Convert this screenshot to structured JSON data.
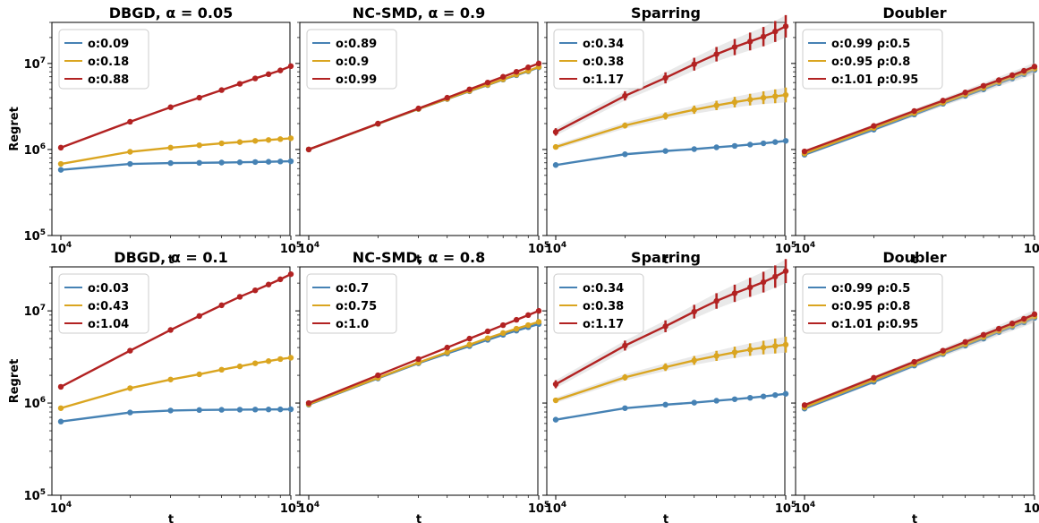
{
  "chart_data": [
    {
      "type": "line",
      "title": "DBGD, α = 0.05",
      "xlabel": "t",
      "ylabel": "Regret",
      "xscale": "log",
      "yscale": "log",
      "xlim": [
        10000,
        100000
      ],
      "ylim": [
        100000,
        30000000
      ],
      "xticklabels": [
        "10^4",
        "10^5"
      ],
      "yticklabels": [
        "10^5",
        "10^6",
        "10^7"
      ],
      "legend": "top-left",
      "x": [
        10000,
        20000,
        30000,
        40000,
        50000,
        60000,
        70000,
        80000,
        90000,
        100000
      ],
      "series": [
        {
          "name": "o:0.09",
          "color": "#4682b4",
          "values": [
            580000,
            680000,
            695000,
            700000,
            705000,
            710000,
            715000,
            720000,
            725000,
            730000
          ]
        },
        {
          "name": "o:0.18",
          "color": "#daa520",
          "values": [
            680000,
            940000,
            1050000,
            1120000,
            1180000,
            1220000,
            1260000,
            1290000,
            1320000,
            1350000
          ]
        },
        {
          "name": "o:0.88",
          "color": "#b22222",
          "values": [
            1050000,
            2100000,
            3100000,
            4000000,
            4900000,
            5800000,
            6700000,
            7500000,
            8300000,
            9300000
          ]
        }
      ]
    },
    {
      "type": "line",
      "title": "NC-SMD, α = 0.9",
      "xlabel": "t",
      "xscale": "log",
      "yscale": "log",
      "xlim": [
        10000,
        100000
      ],
      "ylim": [
        100000,
        30000000
      ],
      "xticklabels": [
        "10^4",
        "10^5"
      ],
      "legend": "top-left",
      "x": [
        10000,
        20000,
        30000,
        40000,
        50000,
        60000,
        70000,
        80000,
        90000,
        100000
      ],
      "series": [
        {
          "name": "o:0.89",
          "color": "#4682b4",
          "values": [
            1000000,
            1980000,
            2950000,
            3850000,
            4750000,
            5600000,
            6500000,
            7300000,
            8100000,
            9000000
          ]
        },
        {
          "name": "o:0.9",
          "color": "#daa520",
          "values": [
            1000000,
            1990000,
            2960000,
            3880000,
            4800000,
            5650000,
            6550000,
            7400000,
            8200000,
            9100000
          ]
        },
        {
          "name": "o:0.99",
          "color": "#b22222",
          "values": [
            1000000,
            2000000,
            3000000,
            4000000,
            5000000,
            6000000,
            7000000,
            8000000,
            9000000,
            10000000
          ]
        }
      ]
    },
    {
      "type": "line",
      "title": "Sparring",
      "xlabel": "t",
      "xscale": "log",
      "yscale": "log",
      "xlim": [
        10000,
        100000
      ],
      "ylim": [
        100000,
        30000000
      ],
      "xticklabels": [
        "10^4",
        "10^5"
      ],
      "legend": "top-left",
      "x": [
        10000,
        20000,
        30000,
        40000,
        50000,
        60000,
        70000,
        80000,
        90000,
        100000
      ],
      "series": [
        {
          "name": "o:0.34",
          "color": "#4682b4",
          "values": [
            660000,
            880000,
            960000,
            1010000,
            1060000,
            1100000,
            1140000,
            1180000,
            1220000,
            1260000
          ]
        },
        {
          "name": "o:0.38",
          "color": "#daa520",
          "values": [
            1070000,
            1900000,
            2450000,
            2900000,
            3250000,
            3550000,
            3800000,
            4000000,
            4150000,
            4300000
          ]
        },
        {
          "name": "o:1.17",
          "color": "#b22222",
          "values": [
            1600000,
            4200000,
            6800000,
            9800000,
            12800000,
            15500000,
            18000000,
            20500000,
            23500000,
            27000000
          ]
        }
      ]
    },
    {
      "type": "line",
      "title": "Doubler",
      "xlabel": "t",
      "xscale": "log",
      "yscale": "log",
      "xlim": [
        10000,
        100000
      ],
      "ylim": [
        100000,
        30000000
      ],
      "xticklabels": [
        "10^4",
        "10^5"
      ],
      "legend": "top-left",
      "x": [
        10000,
        20000,
        30000,
        40000,
        50000,
        60000,
        70000,
        80000,
        90000,
        100000
      ],
      "series": [
        {
          "name": "o:0.99 ρ:0.5",
          "color": "#4682b4",
          "values": [
            870000,
            1700000,
            2550000,
            3400000,
            4200000,
            5000000,
            5900000,
            6700000,
            7500000,
            8400000
          ]
        },
        {
          "name": "o:0.95 ρ:0.8",
          "color": "#daa520",
          "values": [
            900000,
            1780000,
            2650000,
            3500000,
            4350000,
            5200000,
            6100000,
            6950000,
            7800000,
            8700000
          ]
        },
        {
          "name": "o:1.01 ρ:0.95",
          "color": "#b22222",
          "values": [
            950000,
            1880000,
            2800000,
            3700000,
            4600000,
            5500000,
            6400000,
            7300000,
            8200000,
            9200000
          ]
        }
      ]
    },
    {
      "type": "line",
      "title": "DBGD, α = 0.1",
      "xlabel": "t",
      "ylabel": "Regret",
      "xscale": "log",
      "yscale": "log",
      "xlim": [
        10000,
        100000
      ],
      "ylim": [
        100000,
        30000000
      ],
      "xticklabels": [
        "10^4",
        "10^5"
      ],
      "yticklabels": [
        "10^5",
        "10^6",
        "10^7"
      ],
      "legend": "top-left",
      "x": [
        10000,
        20000,
        30000,
        40000,
        50000,
        60000,
        70000,
        80000,
        90000,
        100000
      ],
      "series": [
        {
          "name": "o:0.03",
          "color": "#4682b4",
          "values": [
            630000,
            790000,
            830000,
            840000,
            845000,
            848000,
            850000,
            852000,
            854000,
            856000
          ]
        },
        {
          "name": "o:0.43",
          "color": "#daa520",
          "values": [
            880000,
            1450000,
            1800000,
            2050000,
            2300000,
            2500000,
            2700000,
            2850000,
            3000000,
            3100000
          ]
        },
        {
          "name": "o:1.04",
          "color": "#b22222",
          "values": [
            1500000,
            3700000,
            6200000,
            8800000,
            11500000,
            14200000,
            16700000,
            19300000,
            22000000,
            25000000
          ]
        }
      ]
    },
    {
      "type": "line",
      "title": "NC-SMD, α = 0.8",
      "xlabel": "t",
      "xscale": "log",
      "yscale": "log",
      "xlim": [
        10000,
        100000
      ],
      "ylim": [
        100000,
        30000000
      ],
      "xticklabels": [
        "10^4",
        "10^5"
      ],
      "legend": "top-left",
      "x": [
        10000,
        20000,
        30000,
        40000,
        50000,
        60000,
        70000,
        80000,
        90000,
        100000
      ],
      "series": [
        {
          "name": "o:0.7",
          "color": "#4682b4",
          "values": [
            960000,
            1850000,
            2700000,
            3450000,
            4150000,
            4850000,
            5500000,
            6100000,
            6650000,
            7200000
          ]
        },
        {
          "name": "o:0.75",
          "color": "#daa520",
          "values": [
            970000,
            1880000,
            2750000,
            3550000,
            4300000,
            5050000,
            5750000,
            6400000,
            7000000,
            7600000
          ]
        },
        {
          "name": "o:1.0",
          "color": "#b22222",
          "values": [
            1000000,
            2000000,
            3000000,
            4000000,
            5000000,
            6000000,
            7000000,
            8000000,
            9000000,
            10000000
          ]
        }
      ]
    },
    {
      "type": "line",
      "title": "Sparring",
      "xlabel": "t",
      "xscale": "log",
      "yscale": "log",
      "xlim": [
        10000,
        100000
      ],
      "ylim": [
        100000,
        30000000
      ],
      "xticklabels": [
        "10^4",
        "10^5"
      ],
      "legend": "top-left",
      "x": [
        10000,
        20000,
        30000,
        40000,
        50000,
        60000,
        70000,
        80000,
        90000,
        100000
      ],
      "series": [
        {
          "name": "o:0.34",
          "color": "#4682b4",
          "values": [
            660000,
            880000,
            960000,
            1010000,
            1060000,
            1100000,
            1140000,
            1180000,
            1220000,
            1260000
          ]
        },
        {
          "name": "o:0.38",
          "color": "#daa520",
          "values": [
            1070000,
            1900000,
            2450000,
            2900000,
            3250000,
            3550000,
            3800000,
            4000000,
            4150000,
            4300000
          ]
        },
        {
          "name": "o:1.17",
          "color": "#b22222",
          "values": [
            1600000,
            4200000,
            6800000,
            9800000,
            12800000,
            15500000,
            18000000,
            20500000,
            23500000,
            27000000
          ]
        }
      ]
    },
    {
      "type": "line",
      "title": "Doubler",
      "xlabel": "t",
      "xscale": "log",
      "yscale": "log",
      "xlim": [
        10000,
        100000
      ],
      "ylim": [
        100000,
        30000000
      ],
      "xticklabels": [
        "10^4",
        "10^5"
      ],
      "legend": "top-left",
      "x": [
        10000,
        20000,
        30000,
        40000,
        50000,
        60000,
        70000,
        80000,
        90000,
        100000
      ],
      "series": [
        {
          "name": "o:0.99 ρ:0.5",
          "color": "#4682b4",
          "values": [
            870000,
            1700000,
            2550000,
            3400000,
            4200000,
            5000000,
            5900000,
            6700000,
            7500000,
            8400000
          ]
        },
        {
          "name": "o:0.95 ρ:0.8",
          "color": "#daa520",
          "values": [
            900000,
            1780000,
            2650000,
            3500000,
            4350000,
            5200000,
            6100000,
            6950000,
            7800000,
            8700000
          ]
        },
        {
          "name": "o:1.01 ρ:0.95",
          "color": "#b22222",
          "values": [
            950000,
            1880000,
            2800000,
            3700000,
            4600000,
            5500000,
            6400000,
            7300000,
            8200000,
            9200000
          ]
        }
      ]
    }
  ]
}
